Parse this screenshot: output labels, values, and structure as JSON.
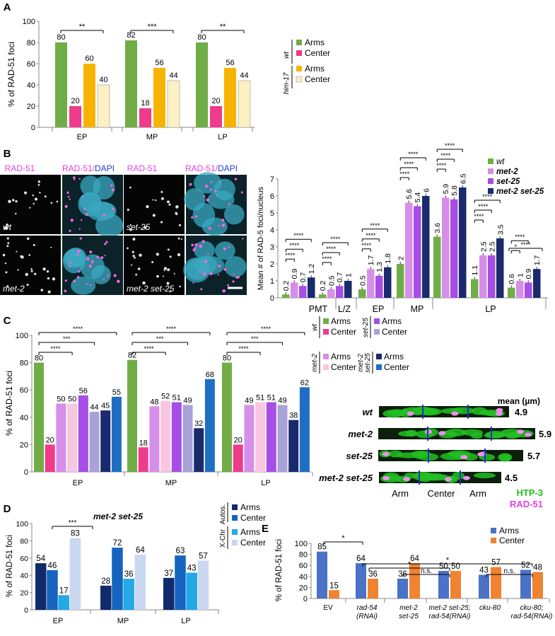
{
  "panels": {
    "A": "A",
    "B": "B",
    "C": "C",
    "D": "D",
    "E": "E"
  },
  "colors": {
    "green": "#70ad47",
    "pink": "#ef3b8c",
    "gold": "#f6b400",
    "cream": "#fdf0c2",
    "violet_light": "#d68fe8",
    "violet": "#a64ee6",
    "navy": "#1a2a6c",
    "lav_light": "#c9a7e0",
    "pink_light": "#f9c6e0",
    "lavender": "#a9a2d8",
    "blue": "#1e6fc4",
    "d_navy": "#102a6b",
    "d_blue": "#1565c0",
    "d_cyan": "#23a9e6",
    "d_pale": "#c9d7f0",
    "e_blue": "#4a72c6",
    "e_orange": "#ef8330",
    "magenta": "#e040e0",
    "dapi_blue": "#2040d0",
    "htp3_green": "#22c022"
  },
  "chart_data": [
    {
      "id": "A",
      "type": "bar",
      "ylabel": "% of RAD-51 foci",
      "ylim": [
        0,
        100
      ],
      "yticks": [
        0,
        20,
        40,
        60,
        80,
        100
      ],
      "groups": [
        "EP",
        "MP",
        "LP"
      ],
      "series": [
        {
          "name": "wt Arms",
          "values": [
            80,
            82,
            80
          ]
        },
        {
          "name": "wt Center",
          "values": [
            20,
            18,
            20
          ]
        },
        {
          "name": "him-17 Arms",
          "values": [
            60,
            56,
            56
          ]
        },
        {
          "name": "him-17 Center",
          "values": [
            40,
            44,
            44
          ]
        }
      ],
      "significance": [
        "**",
        "***",
        "**"
      ],
      "legend": {
        "groups": [
          "wt",
          "him-17"
        ],
        "items": [
          "Arms",
          "Center",
          "Arms",
          "Center"
        ]
      }
    },
    {
      "id": "B",
      "type": "bar",
      "ylabel": "Mean # of RAD-5 foci/nucleus",
      "ylim": [
        0,
        7
      ],
      "yticks": [
        0,
        1,
        2,
        3,
        4,
        5,
        6,
        7
      ],
      "groups": [
        "PMT",
        "L/Z",
        "EP",
        "MP",
        "LP"
      ],
      "clusters": [
        {
          "group": "PMT",
          "values": [
            0.2,
            0.9,
            0.7,
            1.2
          ],
          "labels": [
            "0.2",
            "0.9",
            "0.7",
            "1.2"
          ]
        },
        {
          "group": "PMT",
          "values": [
            0.2,
            0.5,
            0.7,
            1.0
          ],
          "labels": [
            "0.2",
            "0.5",
            "0.7",
            "1"
          ]
        },
        {
          "group": "L/Z",
          "values": [
            0.5,
            1.7,
            1.3,
            1.8
          ],
          "labels": [
            "0.5",
            "1.7",
            "1.3",
            "1.8"
          ]
        },
        {
          "group": "EP",
          "values": [
            2.0,
            5.6,
            5.4,
            6.0
          ],
          "labels": [
            "2",
            "5.6",
            "5.4",
            "6"
          ]
        },
        {
          "group": "MP",
          "values": [
            3.6,
            5.9,
            5.8,
            6.5
          ],
          "labels": [
            "3.6",
            "5.9",
            "5.8",
            "6.5"
          ]
        },
        {
          "group": "LP",
          "values": [
            1.1,
            2.5,
            2.5,
            3.5
          ],
          "labels": [
            "1.1",
            "2.5",
            "2.5",
            "3.5"
          ]
        },
        {
          "group": "LP",
          "values": [
            0.6,
            1.0,
            0.9,
            1.7
          ],
          "labels": [
            "0.6",
            "1",
            "0.9",
            "1.7"
          ]
        }
      ],
      "series_names": [
        "wt",
        "met-2",
        "set-25",
        "met-2 set-25"
      ],
      "significance": "****",
      "sig_small": "*"
    },
    {
      "id": "C",
      "type": "bar",
      "ylabel": "% of RAD-51 foci",
      "ylim": [
        0,
        100
      ],
      "yticks": [
        0,
        20,
        40,
        60,
        80,
        100
      ],
      "groups": [
        "EP",
        "MP",
        "LP"
      ],
      "series": [
        {
          "name": "wt Arms",
          "values": [
            80,
            82,
            80
          ]
        },
        {
          "name": "wt Center",
          "values": [
            20,
            18,
            20
          ]
        },
        {
          "name": "met-2 Arms",
          "values": [
            50,
            48,
            49
          ]
        },
        {
          "name": "met-2 Center",
          "values": [
            50,
            52,
            51
          ]
        },
        {
          "name": "set-25 Arms",
          "values": [
            56,
            51,
            51
          ]
        },
        {
          "name": "set-25 Center",
          "values": [
            44,
            49,
            49
          ]
        },
        {
          "name": "met-2 set-25 Arms",
          "values": [
            45,
            32,
            38
          ]
        },
        {
          "name": "met-2 set-25 Center",
          "values": [
            55,
            68,
            62
          ]
        }
      ],
      "significance": [
        "****",
        "***",
        "****"
      ],
      "legend": {
        "groups": [
          "wt",
          "set-25",
          "met-2",
          "met-2 set-25"
        ],
        "arms": "Arms",
        "center": "Center"
      }
    },
    {
      "id": "C_right",
      "type": "table",
      "title": "mean (µm)",
      "rows": [
        {
          "label": "wt",
          "value": "4.9"
        },
        {
          "label": "met-2",
          "value": "5.9"
        },
        {
          "label": "set-25",
          "value": "5.7"
        },
        {
          "label": "met-2 set-25",
          "value": "4.5"
        }
      ],
      "annotations": [
        "Arm",
        "Center",
        "Arm"
      ],
      "stains": [
        "HTP-3",
        "RAD-51"
      ]
    },
    {
      "id": "D",
      "type": "bar",
      "title": "met-2 set-25",
      "ylabel": "% of RAD-51 foci",
      "ylim": [
        0,
        100
      ],
      "yticks": [
        0,
        20,
        40,
        60,
        80,
        100
      ],
      "groups": [
        "EP",
        "MP",
        "LP"
      ],
      "series": [
        {
          "name": "Autos. Arms",
          "values": [
            54,
            28,
            37
          ]
        },
        {
          "name": "Autos. Center",
          "values": [
            46,
            72,
            63
          ]
        },
        {
          "name": "X-Chr Arms",
          "values": [
            17,
            36,
            43
          ]
        },
        {
          "name": "X-Chr Center",
          "values": [
            83,
            64,
            57
          ]
        }
      ],
      "significance": [
        "***"
      ],
      "legend": {
        "groups": [
          "Autos.",
          "X-Chr"
        ],
        "items": [
          "Arms",
          "Center",
          "Arms",
          "Center"
        ]
      }
    },
    {
      "id": "E",
      "type": "bar",
      "ylabel": "% of RAD-51 foci",
      "ylim": [
        0,
        100
      ],
      "yticks": [
        0,
        20,
        40,
        60,
        80,
        100
      ],
      "categories": [
        "EV",
        "rad-54 (RNAi)",
        "met-2 set-25",
        "met-2 set-25; rad-54(RNAi)",
        "cku-80",
        "cku-80; rad-54(RNAi)"
      ],
      "category_lines": [
        [
          "EV"
        ],
        [
          "rad-54",
          "(RNAi)"
        ],
        [
          "met-2",
          "set-25"
        ],
        [
          "met-2 set-25;",
          "rad-54(RNAi)"
        ],
        [
          "cku-80"
        ],
        [
          "cku-80;",
          "rad-54(RNAi)"
        ]
      ],
      "series": [
        {
          "name": "Arms",
          "values": [
            85,
            64,
            36,
            50,
            43,
            52
          ]
        },
        {
          "name": "Center",
          "values": [
            15,
            36,
            64,
            50,
            57,
            48
          ]
        }
      ],
      "significance": [
        "*",
        "*",
        "*",
        "n.s.",
        "n.s."
      ]
    }
  ],
  "micrographs": {
    "headers": [
      "RAD-51",
      "RAD-51/",
      "DAPI",
      "RAD-51",
      "RAD-51/",
      "DAPI"
    ],
    "labels": [
      "wt",
      "set-25",
      "met-2",
      "met-2 set-25"
    ]
  }
}
